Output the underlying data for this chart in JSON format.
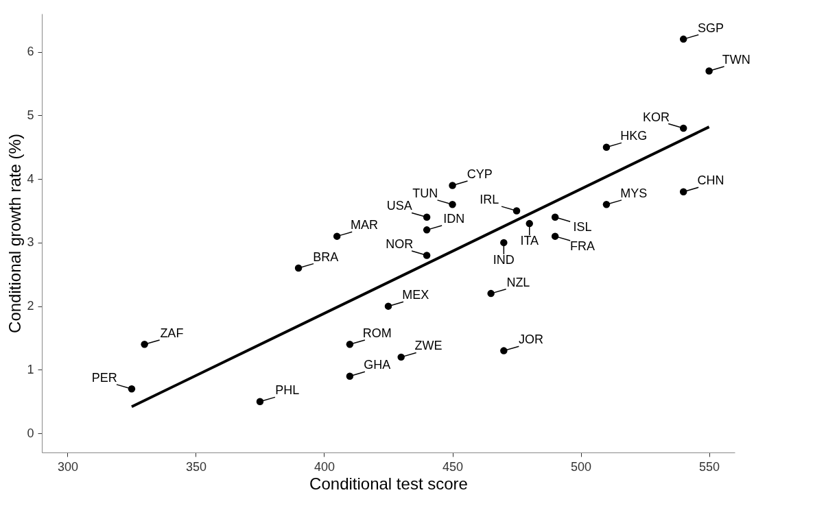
{
  "chart_data": {
    "type": "scatter",
    "xlabel": "Conditional test score",
    "ylabel": "Conditional growth rate (%)",
    "xlim": [
      290,
      560
    ],
    "ylim": [
      -0.3,
      6.6
    ],
    "xticks": [
      300,
      350,
      400,
      450,
      500,
      550
    ],
    "yticks": [
      0,
      1,
      2,
      3,
      4,
      5,
      6
    ],
    "grid": false,
    "series": [
      {
        "marker": "circle",
        "color": "#000000",
        "x": [
          540,
          550,
          540,
          510,
          540,
          510,
          490,
          490,
          480,
          475,
          470,
          465,
          470,
          450,
          450,
          440,
          440,
          440,
          425,
          430,
          410,
          410,
          375,
          405,
          390,
          330,
          325
        ],
        "values": [
          6.2,
          5.7,
          4.8,
          4.5,
          3.8,
          3.6,
          3.4,
          3.1,
          3.3,
          3.5,
          3.0,
          2.2,
          1.3,
          3.9,
          3.6,
          3.4,
          3.2,
          2.8,
          2.0,
          1.2,
          1.4,
          0.9,
          0.5,
          3.1,
          2.6,
          1.4,
          0.7
        ],
        "value_labels": [
          "SGP",
          "TWN",
          "KOR",
          "HKG",
          "CHN",
          "MYS",
          "ISL",
          "FRA",
          "ITA",
          "IRL",
          "IND",
          "NZL",
          "JOR",
          "CYP",
          "TUN",
          "USA",
          "IDN",
          "NOR",
          "MEX",
          "ZWE",
          "ROM",
          "GHA",
          "PHL",
          "MAR",
          "BRA",
          "ZAF",
          "PER"
        ]
      },
      {
        "type": "line",
        "marker": "none",
        "color": "#000000",
        "x": [
          325,
          550
        ],
        "values": [
          0.42,
          4.82
        ]
      }
    ]
  }
}
